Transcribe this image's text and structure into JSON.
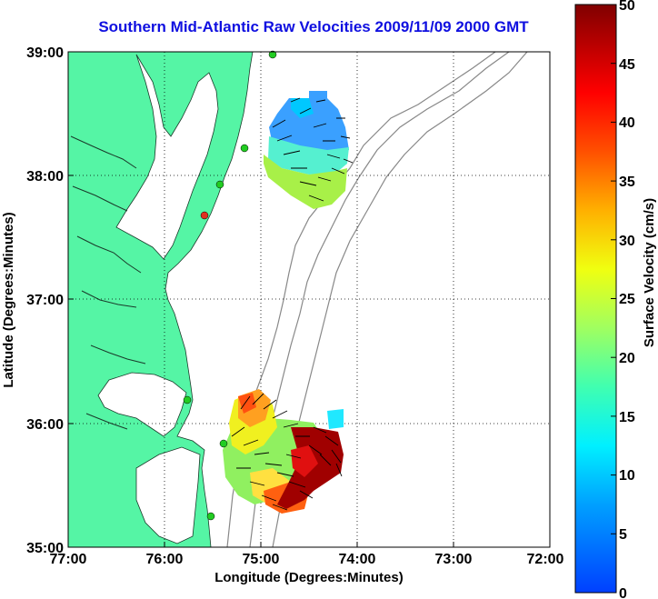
{
  "title": "Southern Mid-Atlantic Raw Velocities 2009/11/09 2000 GMT",
  "xlabel": "Longitude (Degrees:Minutes)",
  "ylabel": "Latitude (Degrees:Minutes)",
  "x_ticks": [
    "77:00",
    "76:00",
    "75:00",
    "74:00",
    "73:00",
    "72:00"
  ],
  "y_ticks": [
    "39:00",
    "38:00",
    "37:00",
    "36:00",
    "35:00"
  ],
  "colorbar": {
    "label": "Surface Velocity (cm/s)",
    "ticks": [
      "50",
      "45",
      "40",
      "35",
      "30",
      "25",
      "20",
      "15",
      "10",
      "5",
      "0"
    ],
    "min": 0,
    "max": 50
  },
  "map_extent": {
    "lon": [
      -77,
      -72
    ],
    "lat": [
      35,
      39
    ]
  },
  "colors": {
    "land": "#55f5a5",
    "title": "#1010e0",
    "station_active": "#22cc22",
    "station_alert": "#e03020"
  }
}
